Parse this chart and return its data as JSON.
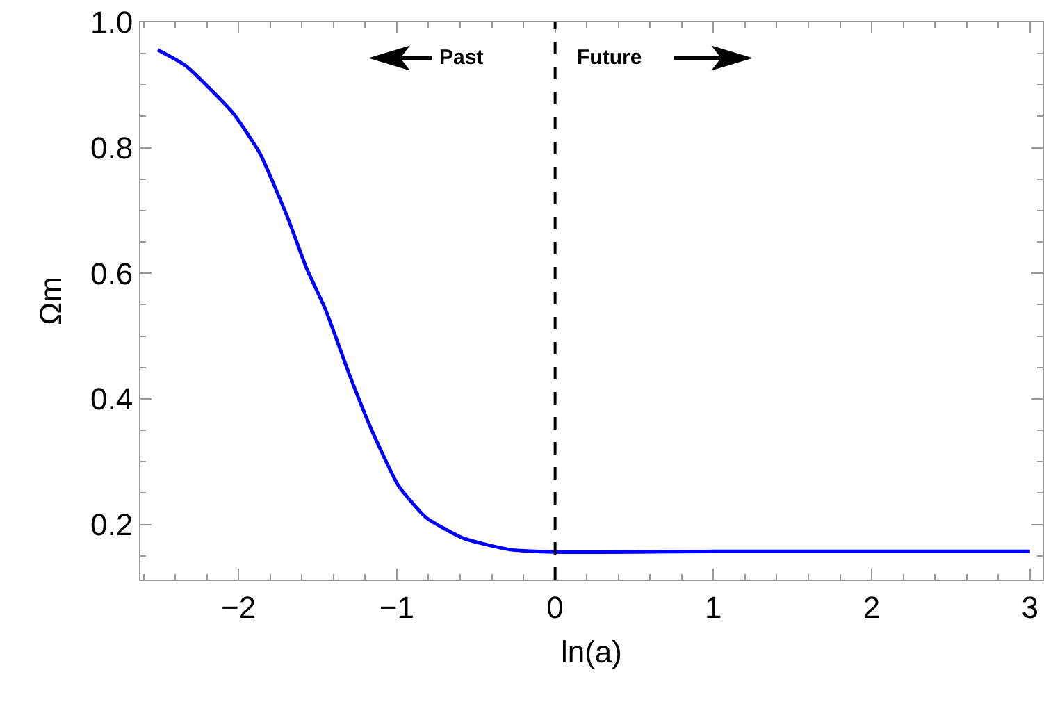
{
  "chart_data": {
    "type": "line",
    "xlabel": "ln(a)",
    "ylabel": "Ωm",
    "x": [
      -2.51,
      -2.335,
      -2.04,
      -1.865,
      -1.69,
      -1.57,
      -1.45,
      -1.3,
      -1.16,
      -0.99,
      -0.815,
      -0.58,
      -0.29,
      0,
      0.5,
      1,
      1.5,
      2,
      2.5,
      3
    ],
    "series": [
      {
        "color": "#0000ff",
        "values": [
          0.956,
          0.931,
          0.857,
          0.791,
          0.689,
          0.608,
          0.542,
          0.439,
          0.351,
          0.262,
          0.211,
          0.178,
          0.16,
          0.156,
          0.156,
          0.157,
          0.157,
          0.157,
          0.157,
          0.157
        ]
      }
    ],
    "xlim": [
      -2.62,
      3.08
    ],
    "ylim": [
      0.112,
      1.0
    ],
    "xticks": [
      {
        "value": -2,
        "label": "−2"
      },
      {
        "value": -1,
        "label": "−1"
      },
      0,
      1,
      2,
      3
    ],
    "yticks": [
      0.2,
      0.4,
      0.6,
      0.8,
      {
        "value": 1,
        "label": "1.0"
      }
    ],
    "ref_lines": [
      {
        "axis": "x",
        "value": 0,
        "color": "#000000",
        "line_style": "dashed"
      }
    ],
    "annotations": [
      "Past",
      "Future"
    ],
    "grid": false,
    "marker": "none",
    "line_style": "solid"
  }
}
